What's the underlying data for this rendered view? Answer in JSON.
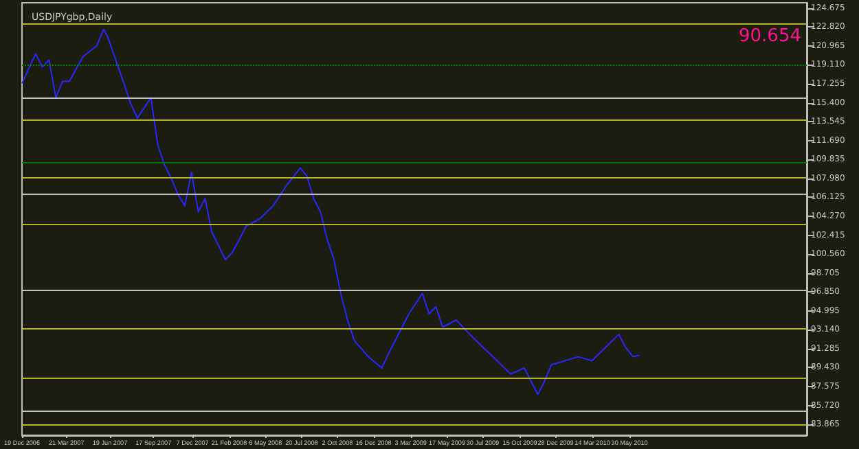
{
  "chart_data": {
    "type": "line",
    "title": "USDJPYgbp,Daily",
    "annotations": [
      "90.654"
    ],
    "x": [
      "2006-12-19",
      "2007-01-16",
      "2007-01-30",
      "2007-02-13",
      "2007-02-27",
      "2007-03-13",
      "2007-03-27",
      "2007-04-24",
      "2007-05-23",
      "2007-06-06",
      "2007-06-14",
      "2007-07-04",
      "2007-07-18",
      "2007-08-01",
      "2007-08-15",
      "2007-08-29",
      "2007-09-12",
      "2007-09-26",
      "2007-10-10",
      "2007-10-24",
      "2007-11-07",
      "2007-11-21",
      "2007-12-05",
      "2007-12-19",
      "2008-01-02",
      "2008-01-16",
      "2008-01-30",
      "2008-02-13",
      "2008-02-27",
      "2008-03-13",
      "2008-03-27",
      "2008-04-24",
      "2008-05-22",
      "2008-06-19",
      "2008-07-17",
      "2008-07-31",
      "2008-08-14",
      "2008-08-28",
      "2008-09-11",
      "2008-09-25",
      "2008-10-09",
      "2008-10-23",
      "2008-11-06",
      "2008-12-05",
      "2009-01-02",
      "2009-01-16",
      "2009-01-30",
      "2009-02-27",
      "2009-03-27",
      "2009-04-10",
      "2009-04-24",
      "2009-05-08",
      "2009-06-05",
      "2009-07-03",
      "2009-07-31",
      "2009-08-29",
      "2009-09-26",
      "2009-10-24",
      "2009-11-21",
      "2009-12-05",
      "2009-12-19",
      "2010-01-16",
      "2010-02-13",
      "2010-03-13",
      "2010-04-10",
      "2010-05-08",
      "2010-05-22",
      "2010-06-06",
      "2010-06-20"
    ],
    "series": [
      {
        "color": "#2828ff",
        "values": [
          117.3,
          120.2,
          118.9,
          119.6,
          115.9,
          117.5,
          117.5,
          119.9,
          121.0,
          122.6,
          121.9,
          119.2,
          117.3,
          115.3,
          113.9,
          114.9,
          115.9,
          111.3,
          109.3,
          108.0,
          106.4,
          105.3,
          108.6,
          104.7,
          106.0,
          102.7,
          101.4,
          100.0,
          100.7,
          102.0,
          103.3,
          104.0,
          105.3,
          107.3,
          109.0,
          108.2,
          106.0,
          104.7,
          102.0,
          100.0,
          96.7,
          94.1,
          92.1,
          90.5,
          89.4,
          90.8,
          92.1,
          94.7,
          96.7,
          94.7,
          95.4,
          93.4,
          94.1,
          92.7,
          91.4,
          90.1,
          88.8,
          89.4,
          86.8,
          88.1,
          89.7,
          90.1,
          90.5,
          90.1,
          91.4,
          92.7,
          91.4,
          90.5,
          90.65
        ]
      }
    ],
    "xlim": [
      "2006-12-19",
      "2011-06-01"
    ],
    "xticks": [
      {
        "value": "2006-12-19",
        "label": "19 Dec 2006"
      },
      {
        "value": "2007-03-21",
        "label": "21 Mar 2007"
      },
      {
        "value": "2007-06-19",
        "label": "19 Jun 2007"
      },
      {
        "value": "2007-09-17",
        "label": "17 Sep 2007"
      },
      {
        "value": "2007-12-07",
        "label": "7 Dec 2007"
      },
      {
        "value": "2008-02-21",
        "label": "21 Feb 2008"
      },
      {
        "value": "2008-05-06",
        "label": "6 May 2008"
      },
      {
        "value": "2008-07-20",
        "label": "20 Jul 2008"
      },
      {
        "value": "2008-10-02",
        "label": "2 Oct 2008"
      },
      {
        "value": "2008-12-16",
        "label": "16 Dec 2008"
      },
      {
        "value": "2009-03-03",
        "label": "3 Mar 2009"
      },
      {
        "value": "2009-05-17",
        "label": "17 May 2009"
      },
      {
        "value": "2009-07-30",
        "label": "30 Jul 2009"
      },
      {
        "value": "2009-10-15",
        "label": "15 Oct 2009"
      },
      {
        "value": "2009-12-28",
        "label": "28 Dec 2009"
      },
      {
        "value": "2010-03-14",
        "label": "14 Mar 2010"
      },
      {
        "value": "2010-05-30",
        "label": "30 May 2010"
      }
    ],
    "ylim": [
      82.8,
      125.2
    ],
    "yticks": [
      124.675,
      {
        "value": 122.82,
        "label": "122.820"
      },
      {
        "value": 120.965,
        "label": "120.965"
      },
      {
        "value": 119.11,
        "label": "119.110"
      },
      {
        "value": 117.255,
        "label": "117.255"
      },
      {
        "value": 115.4,
        "label": "115.400"
      },
      {
        "value": 113.545,
        "label": "113.545"
      },
      {
        "value": 111.69,
        "label": "111.690"
      },
      {
        "value": 109.835,
        "label": "109.835"
      },
      {
        "value": 107.98,
        "label": "107.980"
      },
      {
        "value": 106.125,
        "label": "106.125"
      },
      {
        "value": 104.27,
        "label": "104.270"
      },
      {
        "value": 102.415,
        "label": "102.415"
      },
      {
        "value": 100.56,
        "label": "100.560"
      },
      {
        "value": 98.705,
        "label": "98.705"
      },
      {
        "value": 96.85,
        "label": "96.850"
      },
      {
        "value": 94.995,
        "label": "94.995"
      },
      {
        "value": 93.14,
        "label": "93.140"
      },
      {
        "value": 91.285,
        "label": "91.285"
      },
      {
        "value": 89.43,
        "label": "89.430"
      },
      {
        "value": 87.575,
        "label": "87.575"
      },
      {
        "value": 85.72,
        "label": "85.720"
      },
      {
        "value": 83.865,
        "label": "83.865"
      }
    ],
    "ref_lines": [
      {
        "axis": "y",
        "value": 123.1,
        "color": "#b4b428"
      },
      {
        "axis": "y",
        "value": 119.1,
        "color": "#008000",
        "line_style": "dotted"
      },
      {
        "axis": "y",
        "value": 115.9,
        "color": "#c0c0c0"
      },
      {
        "axis": "y",
        "value": 113.7,
        "color": "#b4b428"
      },
      {
        "axis": "y",
        "value": 109.6,
        "color": "#008000"
      },
      {
        "axis": "y",
        "value": 108.1,
        "color": "#b4b428"
      },
      {
        "axis": "y",
        "value": 106.5,
        "color": "#c0c0c0"
      },
      {
        "axis": "y",
        "value": 103.5,
        "color": "#b4b428"
      },
      {
        "axis": "y",
        "value": 97.1,
        "color": "#c0c0c0"
      },
      {
        "axis": "y",
        "value": 93.3,
        "color": "#b4b428"
      },
      {
        "axis": "y",
        "value": 88.4,
        "color": "#b4b428"
      },
      {
        "axis": "y",
        "value": 85.2,
        "color": "#c0c0c0"
      },
      {
        "axis": "y",
        "value": 83.9,
        "color": "#b4b428"
      }
    ]
  }
}
